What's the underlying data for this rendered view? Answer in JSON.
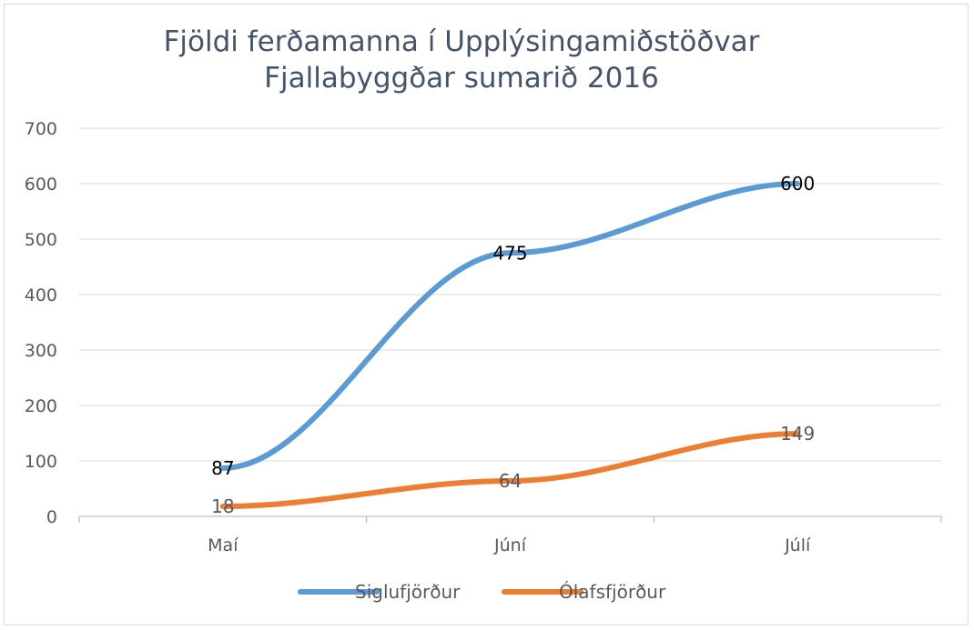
{
  "chart_data": {
    "type": "line",
    "title_lines": [
      "Fjöldi ferðamanna í Upplýsingamiðstöðvar",
      "Fjallabyggðar sumarið 2016"
    ],
    "categories": [
      "Maí",
      "Júní",
      "Júlí"
    ],
    "ylim": [
      0,
      700
    ],
    "yticks": [
      0,
      100,
      200,
      300,
      400,
      500,
      600,
      700
    ],
    "grid": true,
    "legend_position": "bottom",
    "series": [
      {
        "name": "Siglufjörður",
        "values": [
          87,
          475,
          600
        ],
        "color": "#5b9bd5",
        "label_color": "#000000"
      },
      {
        "name": "Ólafsfjörður",
        "values": [
          18,
          64,
          149
        ],
        "color": "#ed7d31",
        "label_color": "#595959"
      }
    ]
  }
}
